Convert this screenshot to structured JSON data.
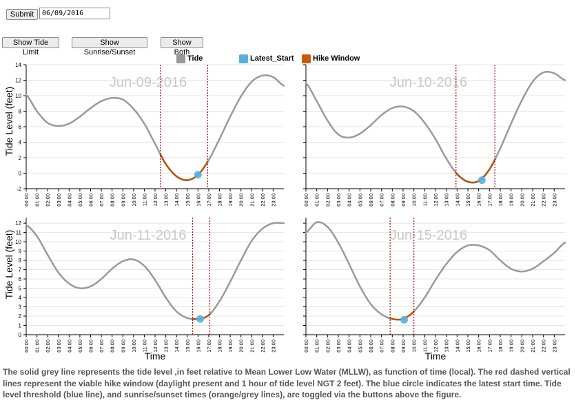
{
  "controls": {
    "submit_label": "Submit",
    "date_value": "06/09/2016",
    "show_tide_limit_label": "Show Tide Limit",
    "show_sunrise_sunset_label": "Show Sunrise/Sunset",
    "show_both_label": "Show Both"
  },
  "legend": [
    {
      "label": "Tide",
      "color": "#999999"
    },
    {
      "label": "Latest_Start",
      "color": "#5aafe0"
    },
    {
      "label": "Hike Window",
      "color": "#c85a10"
    }
  ],
  "colors": {
    "tide": "#999999",
    "hike_window": "#b4540f",
    "latest_start": "#5aafe0",
    "window_lines": "#cc0000",
    "grid": "#e4e4e4"
  },
  "axis_labels": {
    "ylabel": "Tide Level (feet)",
    "xlabel": "Time"
  },
  "caption": "The solid grey line represents the tide level ,in feet relative to Mean Lower Low Water (MLLW), as function of time (local). The red dashed vertical lines represent the viable hike window (daylight present and 1 hour of tide level NGT 2 feet). The blue circle indicates the latest start time. Tide level threshold (blue line), and sunrise/sunset times (orange/grey lines), are toggled via the buttons above the figure.",
  "chart_data": [
    {
      "type": "line",
      "title": "Jun-09-2016",
      "ylabel": "Tide Level (feet)",
      "xlabel": "",
      "x_ticks": [
        "00:00",
        "01:00",
        "02:00",
        "03:00",
        "04:00",
        "05:00",
        "06:00",
        "07:00",
        "08:00",
        "09:00",
        "10:00",
        "11:00",
        "12:00",
        "13:00",
        "14:00",
        "15:00",
        "16:00",
        "17:00",
        "18:00",
        "19:00",
        "20:00",
        "21:00",
        "22:00",
        "23:00"
      ],
      "y_ticks": [
        "-2",
        "0",
        "2",
        "4",
        "6",
        "8",
        "10",
        "12",
        "14"
      ],
      "xlim": [
        0,
        24
      ],
      "ylim": [
        -2,
        14
      ],
      "grid": true,
      "tide": {
        "x": [
          0,
          1,
          2,
          3,
          4,
          5,
          6,
          7,
          8,
          9,
          10,
          11,
          12,
          13,
          14,
          15,
          16,
          17,
          18,
          19,
          20,
          21,
          22,
          23,
          24
        ],
        "y": [
          10.1,
          8.0,
          6.5,
          6.1,
          6.4,
          7.3,
          8.4,
          9.3,
          9.7,
          9.5,
          8.3,
          6.4,
          3.8,
          1.2,
          -0.4,
          -0.9,
          -0.2,
          1.7,
          4.4,
          7.3,
          9.9,
          11.8,
          12.6,
          12.4,
          11.3
        ]
      },
      "hike_window": [
        12.5,
        16.9
      ],
      "latest_start": {
        "x": 16.0,
        "y": -0.2
      }
    },
    {
      "type": "line",
      "title": "Jun-10-2016",
      "ylabel": "",
      "xlabel": "",
      "x_ticks": [
        "00:00",
        "01:00",
        "02:00",
        "03:00",
        "04:00",
        "05:00",
        "06:00",
        "07:00",
        "08:00",
        "09:00",
        "10:00",
        "11:00",
        "12:00",
        "13:00",
        "14:00",
        "15:00",
        "16:00",
        "17:00",
        "18:00",
        "19:00",
        "20:00",
        "21:00",
        "22:00",
        "23:00"
      ],
      "y_ticks": [
        "",
        "",
        "",
        "",
        "",
        "",
        "",
        "",
        ""
      ],
      "xlim": [
        0,
        24
      ],
      "ylim": [
        -2,
        14
      ],
      "grid": true,
      "tide": {
        "x": [
          0,
          1,
          2,
          3,
          4,
          5,
          6,
          7,
          8,
          9,
          10,
          11,
          12,
          13,
          14,
          15,
          16,
          17,
          18,
          19,
          20,
          21,
          22,
          23,
          24
        ],
        "y": [
          11.6,
          9.3,
          6.8,
          5.0,
          4.6,
          5.1,
          6.2,
          7.5,
          8.4,
          8.6,
          8.0,
          6.5,
          4.4,
          1.9,
          -0.1,
          -1.1,
          -1.0,
          0.5,
          3.2,
          6.4,
          9.4,
          11.8,
          13.0,
          12.9,
          12.0
        ]
      },
      "hike_window": [
        13.9,
        17.5
      ],
      "latest_start": {
        "x": 16.3,
        "y": -0.9
      }
    },
    {
      "type": "line",
      "title": "Jun-11-2016",
      "ylabel": "Tide Level (feet)",
      "xlabel": "Time",
      "x_ticks": [
        "00:00",
        "01:00",
        "02:00",
        "03:00",
        "04:00",
        "05:00",
        "06:00",
        "07:00",
        "08:00",
        "09:00",
        "10:00",
        "11:00",
        "12:00",
        "13:00",
        "14:00",
        "15:00",
        "16:00",
        "17:00",
        "18:00",
        "19:00",
        "20:00",
        "21:00",
        "22:00",
        "23:00"
      ],
      "y_ticks": [
        "0",
        "1",
        "2",
        "3",
        "4",
        "5",
        "6",
        "7",
        "8",
        "9",
        "10",
        "11",
        "12"
      ],
      "xlim": [
        0,
        24
      ],
      "ylim": [
        0,
        12.6
      ],
      "grid": true,
      "tide": {
        "x": [
          0,
          1,
          2,
          3,
          4,
          5,
          6,
          7,
          8,
          9,
          10,
          11,
          12,
          13,
          14,
          15,
          16,
          17,
          18,
          19,
          20,
          21,
          22,
          23,
          24
        ],
        "y": [
          11.8,
          10.6,
          8.6,
          6.7,
          5.5,
          5.0,
          5.2,
          6.0,
          7.1,
          7.9,
          8.1,
          7.4,
          5.9,
          4.0,
          2.5,
          1.8,
          1.7,
          2.1,
          3.6,
          5.7,
          8.0,
          10.1,
          11.4,
          12.0,
          12.0
        ]
      },
      "hike_window": [
        15.5,
        17.1
      ],
      "latest_start": {
        "x": 16.2,
        "y": 1.7
      }
    },
    {
      "type": "line",
      "title": "Jun-15-2016",
      "ylabel": "",
      "xlabel": "Time",
      "x_ticks": [
        "00:00",
        "01:00",
        "02:00",
        "03:00",
        "04:00",
        "05:00",
        "06:00",
        "07:00",
        "08:00",
        "09:00",
        "10:00",
        "11:00",
        "12:00",
        "13:00",
        "14:00",
        "15:00",
        "16:00",
        "17:00",
        "18:00",
        "19:00",
        "20:00",
        "21:00",
        "22:00",
        "23:00"
      ],
      "y_ticks": [
        "",
        "",
        "",
        "",
        "",
        "",
        "",
        "",
        "",
        "",
        "",
        "",
        ""
      ],
      "xlim": [
        0,
        24
      ],
      "ylim": [
        0,
        12.6
      ],
      "grid": true,
      "tide": {
        "x": [
          0,
          1,
          2,
          3,
          4,
          5,
          6,
          7,
          8,
          9,
          10,
          11,
          12,
          13,
          14,
          15,
          16,
          17,
          18,
          19,
          20,
          21,
          22,
          23,
          24
        ],
        "y": [
          11.0,
          12.1,
          11.6,
          9.9,
          7.6,
          5.2,
          3.3,
          2.2,
          1.7,
          1.7,
          2.5,
          4.0,
          5.9,
          7.6,
          8.9,
          9.6,
          9.6,
          9.1,
          8.0,
          7.1,
          6.8,
          7.1,
          7.9,
          8.8,
          9.9
        ]
      },
      "hike_window": [
        7.8,
        10.0
      ],
      "latest_start": {
        "x": 9.1,
        "y": 1.6
      }
    }
  ]
}
